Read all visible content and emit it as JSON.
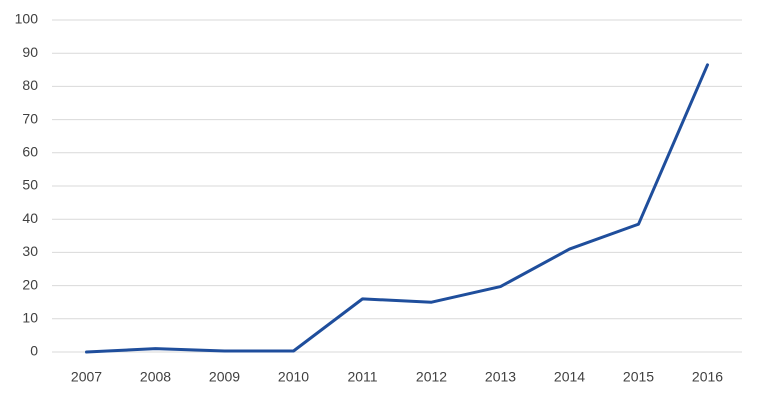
{
  "chart_data": {
    "type": "line",
    "categories": [
      "2007",
      "2008",
      "2009",
      "2010",
      "2011",
      "2012",
      "2013",
      "2014",
      "2015",
      "2016"
    ],
    "values": [
      0,
      1,
      0.3,
      0.3,
      16,
      15,
      19.7,
      31,
      38.5,
      86.5
    ],
    "color": "#1f4e9c",
    "ylim": [
      0,
      100
    ],
    "yticks": [
      0,
      10,
      20,
      30,
      40,
      50,
      60,
      70,
      80,
      90,
      100
    ],
    "grid": true
  }
}
